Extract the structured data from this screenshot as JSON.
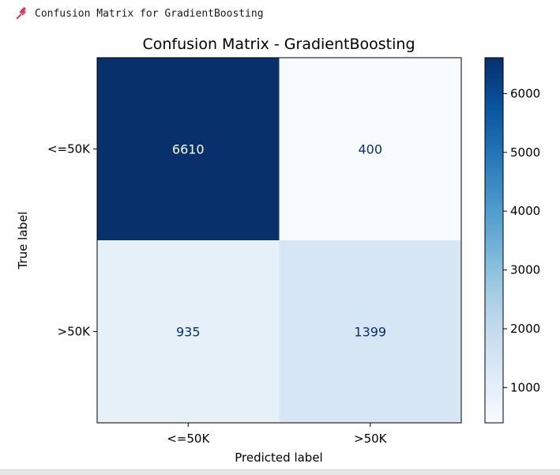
{
  "output": {
    "title": "Confusion Matrix for GradientBoosting",
    "icon": "pushpin-icon"
  },
  "chart_data": {
    "type": "heatmap",
    "title": "Confusion Matrix - GradientBoosting",
    "xlabel": "Predicted label",
    "ylabel": "True label",
    "x_categories": [
      "<=50K",
      ">50K"
    ],
    "y_categories": [
      "<=50K",
      ">50K"
    ],
    "values": [
      [
        6610,
        400
      ],
      [
        935,
        1399
      ]
    ],
    "colormap": "Blues",
    "colorbar": {
      "ticks": [
        1000,
        2000,
        3000,
        4000,
        5000,
        6000
      ]
    }
  }
}
